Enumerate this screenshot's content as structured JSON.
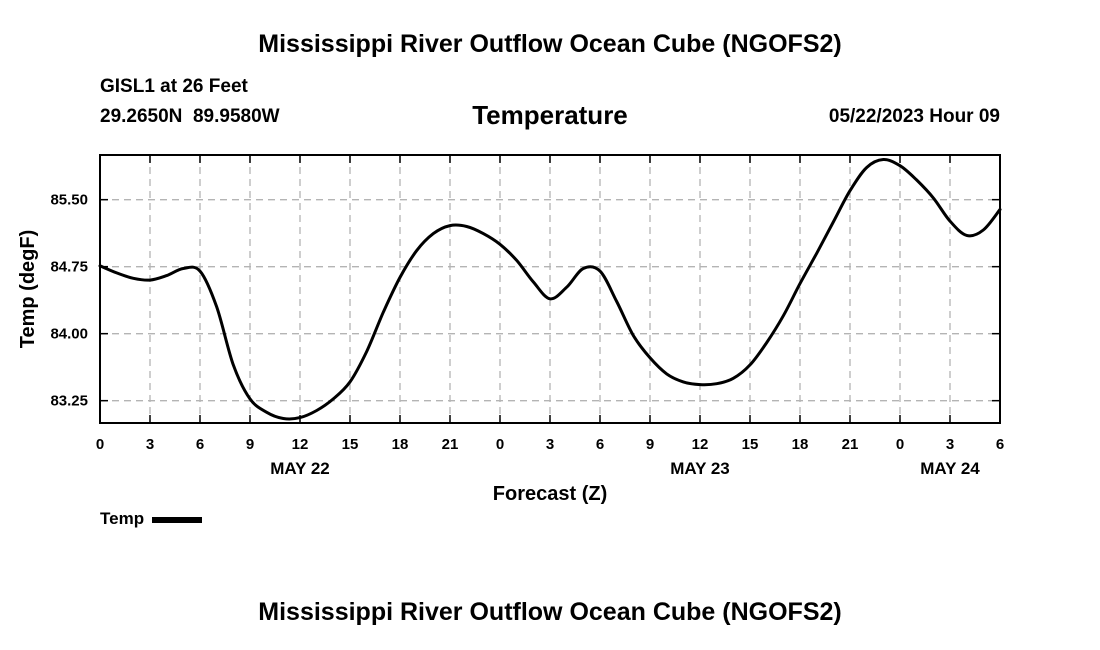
{
  "page": {
    "title": "Mississippi River Outflow Ocean Cube (NGOFS2)",
    "footer_title": "Mississippi River Outflow Ocean Cube (NGOFS2)",
    "station": "GISL1 at 26 Feet",
    "coords": "29.2650N  89.9580W",
    "datetime": "05/22/2023 Hour 09"
  },
  "chart_data": {
    "type": "line",
    "title": "Temperature",
    "xlabel": "Forecast (Z)",
    "ylabel": "Temp (degF)",
    "ylim": [
      83.0,
      86.0
    ],
    "xlim": [
      0,
      54
    ],
    "grid": true,
    "legend": {
      "position": "bottom-left",
      "entries": [
        "Temp"
      ]
    },
    "line_color": "#000000",
    "x_ticks": [
      0,
      3,
      6,
      9,
      12,
      15,
      18,
      21,
      24,
      27,
      30,
      33,
      36,
      39,
      42,
      45,
      48,
      51,
      54
    ],
    "x_tick_labels": [
      "0",
      "3",
      "6",
      "9",
      "12",
      "15",
      "18",
      "21",
      "0",
      "3",
      "6",
      "9",
      "12",
      "15",
      "18",
      "21",
      "0",
      "3",
      "6"
    ],
    "date_labels": [
      {
        "x": 12,
        "label": "MAY 22"
      },
      {
        "x": 36,
        "label": "MAY 23"
      },
      {
        "x": 51,
        "label": "MAY 24"
      }
    ],
    "y_ticks": [
      83.25,
      84.0,
      84.75,
      85.5
    ],
    "y_tick_labels": [
      "83.25",
      "84.00",
      "84.75",
      "85.50"
    ],
    "series": [
      {
        "name": "Temp",
        "x": [
          0,
          1,
          2,
          3,
          4,
          5,
          6,
          7,
          8,
          9,
          10,
          11,
          12,
          13,
          14,
          15,
          16,
          17,
          18,
          19,
          20,
          21,
          22,
          23,
          24,
          25,
          26,
          27,
          28,
          29,
          30,
          31,
          32,
          33,
          34,
          35,
          36,
          37,
          38,
          39,
          40,
          41,
          42,
          43,
          44,
          45,
          46,
          47,
          48,
          49,
          50,
          51,
          52,
          53,
          54
        ],
        "values": [
          84.76,
          84.68,
          84.62,
          84.6,
          84.65,
          84.73,
          84.7,
          84.3,
          83.65,
          83.27,
          83.12,
          83.05,
          83.06,
          83.14,
          83.27,
          83.46,
          83.8,
          84.24,
          84.63,
          84.93,
          85.12,
          85.21,
          85.2,
          85.12,
          85.0,
          84.82,
          84.58,
          84.39,
          84.52,
          84.73,
          84.7,
          84.36,
          83.98,
          83.73,
          83.55,
          83.46,
          83.43,
          83.44,
          83.5,
          83.65,
          83.9,
          84.2,
          84.56,
          84.9,
          85.25,
          85.6,
          85.86,
          85.95,
          85.88,
          85.72,
          85.52,
          85.26,
          85.1,
          85.16,
          85.39
        ]
      }
    ]
  }
}
